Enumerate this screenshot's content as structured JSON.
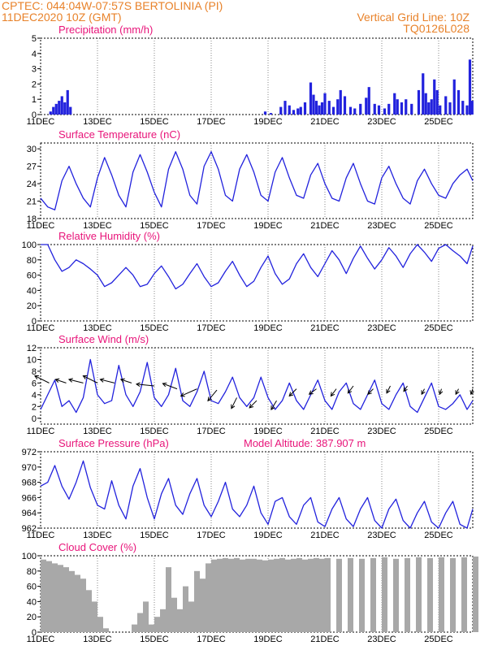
{
  "header": {
    "line1": "CPTEC:   044:04W-07:57S   BERTOLINIA (PI)",
    "line2": "11DEC2020 10Z (GMT)",
    "grid_note": "Vertical Grid Line: 10Z",
    "code": "TQ0126L028"
  },
  "colors": {
    "title": "#e8157a",
    "header": "#e8822a",
    "line": "#2222dd",
    "bar": "#2222dd",
    "cloud": "#a8a8a8",
    "grid": "#000000"
  },
  "chart_data": [
    {
      "id": "precip",
      "type": "bar",
      "title": "Precipitation (mm/h)",
      "ylim": [
        0,
        5
      ],
      "yticks": [
        0,
        1,
        2,
        3,
        4,
        5
      ],
      "xticks": [
        "11DEC",
        "13DEC",
        "15DEC",
        "17DEC",
        "19DEC",
        "21DEC",
        "23DEC",
        "25DEC"
      ],
      "xlim_days": [
        0,
        15.2
      ],
      "bars": [
        [
          0.35,
          0.2
        ],
        [
          0.45,
          0.5
        ],
        [
          0.55,
          0.7
        ],
        [
          0.65,
          0.9
        ],
        [
          0.75,
          1.2
        ],
        [
          0.85,
          0.8
        ],
        [
          0.95,
          1.6
        ],
        [
          1.05,
          0.5
        ],
        [
          7.9,
          0.2
        ],
        [
          8.1,
          0.1
        ],
        [
          8.45,
          0.5
        ],
        [
          8.6,
          0.9
        ],
        [
          8.75,
          0.6
        ],
        [
          8.9,
          0.3
        ],
        [
          9.05,
          0.4
        ],
        [
          9.15,
          0.5
        ],
        [
          9.3,
          0.8
        ],
        [
          9.5,
          2.1
        ],
        [
          9.6,
          1.3
        ],
        [
          9.7,
          0.9
        ],
        [
          9.8,
          0.6
        ],
        [
          9.9,
          0.8
        ],
        [
          10.0,
          1.4
        ],
        [
          10.15,
          0.9
        ],
        [
          10.3,
          0.5
        ],
        [
          10.45,
          1.0
        ],
        [
          10.55,
          1.6
        ],
        [
          10.7,
          1.2
        ],
        [
          10.9,
          0.5
        ],
        [
          11.05,
          0.4
        ],
        [
          11.25,
          0.7
        ],
        [
          11.45,
          1.1
        ],
        [
          11.55,
          1.8
        ],
        [
          11.75,
          0.7
        ],
        [
          11.9,
          0.6
        ],
        [
          12.1,
          0.4
        ],
        [
          12.25,
          0.7
        ],
        [
          12.45,
          1.4
        ],
        [
          12.55,
          1.0
        ],
        [
          12.7,
          0.8
        ],
        [
          12.85,
          1.0
        ],
        [
          13.05,
          0.7
        ],
        [
          13.3,
          1.6
        ],
        [
          13.45,
          2.7
        ],
        [
          13.55,
          1.4
        ],
        [
          13.65,
          0.8
        ],
        [
          13.75,
          1.0
        ],
        [
          13.85,
          2.3
        ],
        [
          13.95,
          1.6
        ],
        [
          14.05,
          0.6
        ],
        [
          14.25,
          1.2
        ],
        [
          14.4,
          0.8
        ],
        [
          14.55,
          2.3
        ],
        [
          14.7,
          1.6
        ],
        [
          14.85,
          0.9
        ],
        [
          15.0,
          0.6
        ],
        [
          15.1,
          3.6
        ],
        [
          15.18,
          0.9
        ]
      ]
    },
    {
      "id": "temp",
      "type": "line",
      "title": "Surface Temperature (nC)",
      "ylim": [
        18,
        31
      ],
      "yticks": [
        18,
        21,
        24,
        27,
        30
      ],
      "xticks": [
        "11DEC",
        "13DEC",
        "15DEC",
        "17DEC",
        "19DEC",
        "21DEC",
        "23DEC",
        "25DEC"
      ],
      "xlim_days": [
        0,
        15.2
      ],
      "x": [
        0,
        0.25,
        0.5,
        0.75,
        1.0,
        1.25,
        1.5,
        1.75,
        2.0,
        2.25,
        2.5,
        2.75,
        3.0,
        3.25,
        3.5,
        3.75,
        4.0,
        4.25,
        4.5,
        4.75,
        5.0,
        5.25,
        5.5,
        5.75,
        6.0,
        6.25,
        6.5,
        6.75,
        7.0,
        7.25,
        7.5,
        7.75,
        8.0,
        8.25,
        8.5,
        8.75,
        9.0,
        9.25,
        9.5,
        9.75,
        10.0,
        10.25,
        10.5,
        10.75,
        11.0,
        11.25,
        11.5,
        11.75,
        12.0,
        12.25,
        12.5,
        12.75,
        13.0,
        13.25,
        13.5,
        13.75,
        14.0,
        14.25,
        14.5,
        14.75,
        15.0,
        15.2
      ],
      "y": [
        21.5,
        20.0,
        19.5,
        24.5,
        27.0,
        24.0,
        21.5,
        20.0,
        25.0,
        28.5,
        25.5,
        22.0,
        20.0,
        26.0,
        29.0,
        26.0,
        22.5,
        20.0,
        26.5,
        29.5,
        26.5,
        22.0,
        20.5,
        27.0,
        29.5,
        26.5,
        22.0,
        21.0,
        26.5,
        29.0,
        26.0,
        22.0,
        21.0,
        26.0,
        28.5,
        25.0,
        22.0,
        21.5,
        25.5,
        27.5,
        24.0,
        21.5,
        21.0,
        25.0,
        27.5,
        24.0,
        21.0,
        20.5,
        25.0,
        27.0,
        24.0,
        21.5,
        20.5,
        24.5,
        26.5,
        24.0,
        22.0,
        21.5,
        24.0,
        25.5,
        26.5,
        24.5
      ]
    },
    {
      "id": "rh",
      "type": "line",
      "title": "Relative Humidity (%)",
      "ylim": [
        0,
        100
      ],
      "yticks": [
        0,
        20,
        40,
        60,
        80,
        100
      ],
      "xticks": [
        "11DEC",
        "13DEC",
        "15DEC",
        "17DEC",
        "19DEC",
        "21DEC",
        "23DEC",
        "25DEC"
      ],
      "xlim_days": [
        0,
        15.2
      ],
      "x": [
        0,
        0.25,
        0.5,
        0.75,
        1.0,
        1.25,
        1.5,
        1.75,
        2.0,
        2.25,
        2.5,
        2.75,
        3.0,
        3.25,
        3.5,
        3.75,
        4.0,
        4.25,
        4.5,
        4.75,
        5.0,
        5.25,
        5.5,
        5.75,
        6.0,
        6.25,
        6.5,
        6.75,
        7.0,
        7.25,
        7.5,
        7.75,
        8.0,
        8.25,
        8.5,
        8.75,
        9.0,
        9.25,
        9.5,
        9.75,
        10.0,
        10.25,
        10.5,
        10.75,
        11.0,
        11.25,
        11.5,
        11.75,
        12.0,
        12.25,
        12.5,
        12.75,
        13.0,
        13.25,
        13.5,
        13.75,
        14.0,
        14.25,
        14.5,
        14.75,
        15.0,
        15.2
      ],
      "y": [
        100,
        100,
        80,
        65,
        70,
        80,
        75,
        68,
        60,
        45,
        50,
        60,
        70,
        60,
        45,
        48,
        62,
        72,
        58,
        42,
        48,
        62,
        75,
        58,
        45,
        50,
        65,
        78,
        60,
        45,
        52,
        70,
        85,
        62,
        48,
        55,
        75,
        88,
        70,
        58,
        75,
        92,
        80,
        62,
        82,
        98,
        82,
        68,
        80,
        96,
        85,
        70,
        88,
        100,
        90,
        78,
        95,
        100,
        92,
        85,
        75,
        98
      ]
    },
    {
      "id": "wind",
      "type": "line",
      "title": "Surface Wind (m/s)",
      "ylim": [
        -1,
        12
      ],
      "yticks": [
        0,
        2,
        4,
        6,
        8,
        10,
        12
      ],
      "xticks": [
        "11DEC",
        "13DEC",
        "15DEC",
        "17DEC",
        "19DEC",
        "21DEC",
        "23DEC",
        "25DEC"
      ],
      "xlim_days": [
        0,
        15.2
      ],
      "x": [
        0,
        0.25,
        0.5,
        0.75,
        1.0,
        1.25,
        1.5,
        1.75,
        2.0,
        2.25,
        2.5,
        2.75,
        3.0,
        3.25,
        3.5,
        3.75,
        4.0,
        4.25,
        4.5,
        4.75,
        5.0,
        5.25,
        5.5,
        5.75,
        6.0,
        6.25,
        6.5,
        6.75,
        7.0,
        7.25,
        7.5,
        7.75,
        8.0,
        8.25,
        8.5,
        8.75,
        9.0,
        9.25,
        9.5,
        9.75,
        10.0,
        10.25,
        10.5,
        10.75,
        11.0,
        11.25,
        11.5,
        11.75,
        12.0,
        12.25,
        12.5,
        12.75,
        13.0,
        13.25,
        13.5,
        13.75,
        14.0,
        14.25,
        14.5,
        14.75,
        15.0,
        15.2
      ],
      "y": [
        1.5,
        4.0,
        6.5,
        2.0,
        3.0,
        1.0,
        3.5,
        10.0,
        4.0,
        2.5,
        3.0,
        9.0,
        4.0,
        2.0,
        4.5,
        9.5,
        3.5,
        2.0,
        4.0,
        8.5,
        3.0,
        2.0,
        4.5,
        8.0,
        3.0,
        2.5,
        4.5,
        7.0,
        3.5,
        2.0,
        3.5,
        7.0,
        3.5,
        1.5,
        3.0,
        6.0,
        3.0,
        1.5,
        4.0,
        6.5,
        3.0,
        1.5,
        4.5,
        6.0,
        2.5,
        1.5,
        4.0,
        6.5,
        2.5,
        1.5,
        4.0,
        6.0,
        2.0,
        1.0,
        3.5,
        6.0,
        2.0,
        1.5,
        2.5,
        4.0,
        1.5,
        3.0
      ],
      "arrows": [
        [
          0.3,
          6.0,
          -0.8,
          0.4
        ],
        [
          0.9,
          6.0,
          -0.6,
          0.2
        ],
        [
          1.5,
          6.0,
          -0.8,
          0.2
        ],
        [
          2.0,
          6.0,
          -0.8,
          0.4
        ],
        [
          2.6,
          6.0,
          -0.8,
          0.2
        ],
        [
          3.2,
          6.0,
          -0.6,
          0.2
        ],
        [
          4.0,
          5.5,
          -1.0,
          0.1
        ],
        [
          4.8,
          5.0,
          -0.8,
          0.3
        ],
        [
          5.5,
          5.0,
          -0.9,
          -0.4
        ],
        [
          6.2,
          4.8,
          -0.5,
          -0.6
        ],
        [
          6.9,
          3.5,
          -0.3,
          -0.6
        ],
        [
          7.6,
          3.0,
          -0.4,
          -0.4
        ],
        [
          8.3,
          3.0,
          -0.3,
          -0.5
        ],
        [
          9.0,
          5.0,
          -0.4,
          -0.4
        ],
        [
          9.7,
          5.0,
          -0.4,
          -0.3
        ],
        [
          10.4,
          5.0,
          -0.3,
          -0.4
        ],
        [
          11.0,
          5.5,
          -0.3,
          -0.4
        ],
        [
          11.7,
          5.0,
          -0.3,
          -0.3
        ],
        [
          12.3,
          5.5,
          -0.2,
          -0.4
        ],
        [
          12.9,
          5.5,
          -0.2,
          -0.3
        ],
        [
          13.5,
          5.0,
          -0.15,
          -0.3
        ],
        [
          14.1,
          5.0,
          -0.1,
          -0.3
        ],
        [
          14.7,
          5.0,
          -0.15,
          -0.3
        ],
        [
          15.2,
          5.0,
          -0.1,
          -0.3
        ]
      ]
    },
    {
      "id": "pres",
      "type": "line",
      "title": "Surface Pressure (hPa)",
      "subtitle": "Model Altitude: 387.907 m",
      "ylim": [
        962,
        972
      ],
      "yticks": [
        962,
        964,
        966,
        968,
        970,
        972
      ],
      "xticks": [
        "11DEC",
        "13DEC",
        "15DEC",
        "17DEC",
        "19DEC",
        "21DEC",
        "23DEC",
        "25DEC"
      ],
      "xlim_days": [
        0,
        15.2
      ],
      "x": [
        0,
        0.25,
        0.5,
        0.75,
        1.0,
        1.25,
        1.5,
        1.75,
        2.0,
        2.25,
        2.5,
        2.75,
        3.0,
        3.25,
        3.5,
        3.75,
        4.0,
        4.25,
        4.5,
        4.75,
        5.0,
        5.25,
        5.5,
        5.75,
        6.0,
        6.25,
        6.5,
        6.75,
        7.0,
        7.25,
        7.5,
        7.75,
        8.0,
        8.25,
        8.5,
        8.75,
        9.0,
        9.25,
        9.5,
        9.75,
        10.0,
        10.25,
        10.5,
        10.75,
        11.0,
        11.25,
        11.5,
        11.75,
        12.0,
        12.25,
        12.5,
        12.75,
        13.0,
        13.25,
        13.5,
        13.75,
        14.0,
        14.25,
        14.5,
        14.75,
        15.0,
        15.2
      ],
      "y": [
        967.5,
        968.0,
        970.2,
        967.5,
        965.8,
        968.0,
        970.8,
        967.3,
        965.0,
        964.5,
        968.2,
        965.0,
        963.2,
        967.5,
        969.8,
        966.0,
        963.2,
        966.5,
        968.5,
        965.0,
        963.8,
        966.5,
        968.5,
        965.0,
        963.5,
        965.5,
        968.0,
        964.5,
        963.5,
        965.0,
        967.5,
        964.0,
        962.5,
        965.5,
        966.0,
        963.5,
        962.5,
        965.0,
        966.0,
        962.8,
        962.2,
        964.5,
        966.0,
        963.2,
        962.2,
        964.5,
        966.0,
        963.0,
        962.0,
        964.5,
        965.8,
        963.0,
        962.0,
        964.0,
        965.5,
        962.8,
        962.0,
        964.0,
        965.5,
        962.5,
        962.0,
        964.5
      ]
    },
    {
      "id": "cloud",
      "type": "area",
      "title": "Cloud Cover (%)",
      "ylim": [
        0,
        100
      ],
      "yticks": [
        0,
        20,
        40,
        60,
        80,
        100
      ],
      "xticks": [
        "11DEC",
        "13DEC",
        "15DEC",
        "17DEC",
        "19DEC",
        "21DEC",
        "23DEC",
        "25DEC"
      ],
      "xlim_days": [
        0,
        15.2
      ],
      "x": [
        0,
        0.2,
        0.4,
        0.6,
        0.8,
        1.0,
        1.2,
        1.4,
        1.6,
        1.8,
        2.0,
        2.2,
        2.4,
        2.6,
        2.8,
        3.0,
        3.2,
        3.4,
        3.6,
        3.8,
        4.0,
        4.2,
        4.4,
        4.6,
        4.8,
        5.0,
        5.2,
        5.4,
        5.6,
        5.8,
        6.0,
        6.2,
        6.4,
        6.6,
        6.8,
        7.0,
        7.2,
        7.4,
        7.6,
        7.8,
        8.0,
        8.2,
        8.4,
        8.6,
        8.8,
        9.0,
        9.2,
        9.4,
        9.6,
        9.8,
        10.0,
        10.4,
        10.8,
        11.2,
        11.6,
        12.0,
        12.4,
        12.8,
        13.2,
        13.6,
        14.0,
        14.4,
        14.8,
        15.2
      ],
      "y": [
        95,
        93,
        90,
        88,
        85,
        80,
        75,
        70,
        55,
        40,
        20,
        5,
        0,
        0,
        0,
        0,
        10,
        25,
        40,
        10,
        20,
        30,
        85,
        45,
        30,
        60,
        40,
        80,
        70,
        90,
        95,
        96,
        97,
        96,
        97,
        95,
        96,
        96,
        95,
        94,
        95,
        96,
        97,
        95,
        96,
        97,
        95,
        96,
        97,
        96,
        97,
        96,
        97,
        96,
        97,
        98,
        96,
        97,
        98,
        97,
        98,
        97,
        98,
        99
      ]
    }
  ]
}
